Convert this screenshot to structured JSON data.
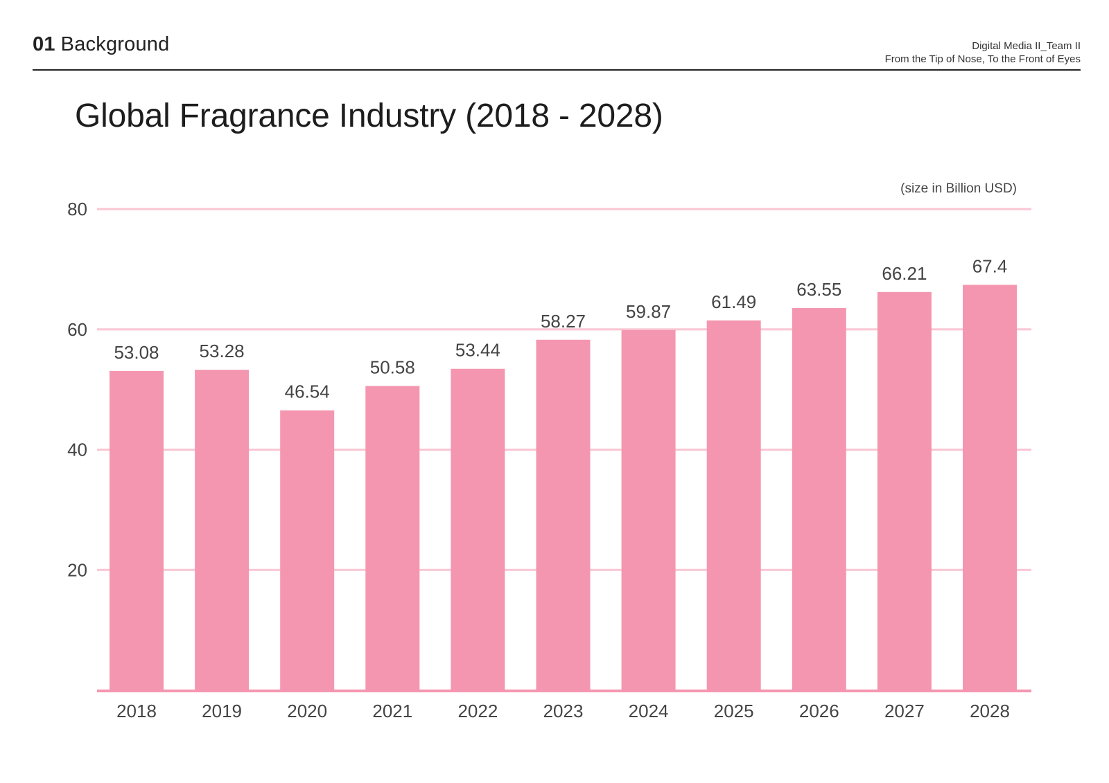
{
  "header": {
    "section_number": "01",
    "section_title": "Background",
    "course": "Digital Media II_Team II",
    "project": "From the Tip of Nose, To the Front of Eyes"
  },
  "slide": {
    "title": "Global Fragrance Industry (2018 - 2028)",
    "unit_note": "(size in Billion USD)"
  },
  "colors": {
    "bar": "#f596b0",
    "gridline": "#f9c6d3",
    "baseline": "#f596b0",
    "text": "#333333"
  },
  "chart_data": {
    "type": "bar",
    "title": "Global Fragrance Industry (2018 - 2028)",
    "xlabel": "",
    "ylabel": "",
    "unit": "(size in Billion USD)",
    "categories": [
      "2018",
      "2019",
      "2020",
      "2021",
      "2022",
      "2023",
      "2024",
      "2025",
      "2026",
      "2027",
      "2028"
    ],
    "values": [
      53.08,
      53.28,
      46.54,
      50.58,
      53.44,
      58.27,
      59.87,
      61.49,
      63.55,
      66.21,
      67.4
    ],
    "value_labels": [
      "53.08",
      "53.28",
      "46.54",
      "50.58",
      "53.44",
      "58.27",
      "59.87",
      "61.49",
      "63.55",
      "66.21",
      "67.4"
    ],
    "y_ticks": [
      20,
      40,
      60,
      80
    ],
    "ylim": [
      0,
      80
    ],
    "grid": true,
    "legend": "none"
  }
}
